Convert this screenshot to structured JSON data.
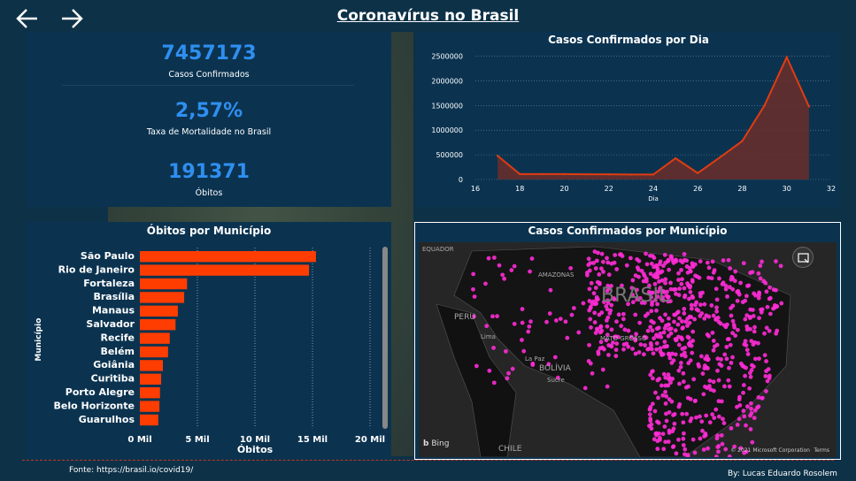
{
  "header": {
    "title": "Coronavírus no Brasil"
  },
  "kpis": {
    "confirmed": {
      "value": "7457173",
      "label": "Casos Confirmados"
    },
    "mortality": {
      "value": "2,57%",
      "label": "Taxa de Mortalidade no Brasil"
    },
    "deaths": {
      "value": "191371",
      "label": "Óbitos"
    }
  },
  "colors": {
    "background": "#0d3147",
    "panel": "#0b3350",
    "accent_blue": "#2f8ff0",
    "bar": "#ff3d00",
    "line": "#e03c10",
    "map_dots": "#ff2bd6"
  },
  "chart_data": [
    {
      "type": "area",
      "title": "Casos Confirmados por Dia",
      "xlabel": "Dia",
      "ylabel": "",
      "x": [
        17,
        18,
        19,
        20,
        21,
        22,
        23,
        24,
        25,
        26,
        27,
        28,
        29,
        30,
        31
      ],
      "values": [
        480000,
        110000,
        110000,
        110000,
        105000,
        105000,
        100000,
        100000,
        430000,
        130000,
        450000,
        780000,
        1500000,
        2480000,
        1480000
      ],
      "xlim": [
        16,
        32
      ],
      "ylim": [
        0,
        2600000
      ],
      "x_ticks": [
        "16",
        "18",
        "20",
        "22",
        "24",
        "26",
        "28",
        "30",
        "32"
      ],
      "y_ticks": [
        "0",
        "500000",
        "1000000",
        "1500000",
        "2000000",
        "2500000"
      ],
      "grid": true
    },
    {
      "type": "bar",
      "orientation": "horizontal",
      "title": "Óbitos por Município",
      "xlabel": "Óbitos",
      "ylabel": "Município",
      "categories": [
        "São Paulo",
        "Rio de Janeiro",
        "Fortaleza",
        "Brasília",
        "Manaus",
        "Salvador",
        "Recife",
        "Belém",
        "Goiânia",
        "Curitiba",
        "Porto Alegre",
        "Belo Horizonte",
        "Guarulhos"
      ],
      "values": [
        15300,
        14700,
        4100,
        3850,
        3300,
        3100,
        2600,
        2450,
        2000,
        1850,
        1750,
        1700,
        1600
      ],
      "xlim": [
        0,
        20000
      ],
      "x_ticks": [
        "0 Mil",
        "5 Mil",
        "10 Mil",
        "15 Mil",
        "20 Mil"
      ],
      "grid": true
    }
  ],
  "map": {
    "title": "Casos Confirmados por Município",
    "labels": [
      "EQUADOR",
      "PERU",
      "Lima",
      "BRASIL",
      "AMAZONAS",
      "BOLÍVIA",
      "La Paz",
      "Sucre",
      "CHILE",
      "MATO GROSSO"
    ],
    "provider": "Bing",
    "copyright": "© 2021 Microsoft Corporation",
    "terms": "Terms"
  },
  "footer": {
    "source": "Fonte: https://brasil.io/covid19/",
    "author": "By: Lucas Eduardo Rosolem"
  }
}
